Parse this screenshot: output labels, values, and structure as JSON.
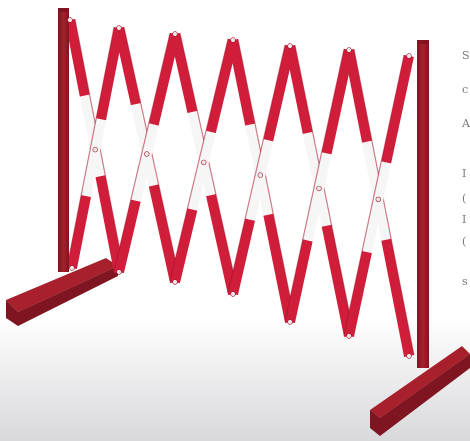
{
  "image": {
    "subject": "red-white-scissor-barrier-icon",
    "colors": {
      "background_top": "#ffffff",
      "background_bottom": "#d9d9dc",
      "frame_red": "#a8202c",
      "frame_red_dark": "#7e1520",
      "slat_red": "#d01d3a",
      "slat_red_dark": "#a8122a",
      "slat_white": "#f6f6f6",
      "rivet": "#e8e8e8"
    }
  },
  "cropped_text_column": {
    "glyphs": [
      "S",
      "c",
      "A",
      "I",
      "(",
      "I",
      "(",
      "s"
    ]
  }
}
